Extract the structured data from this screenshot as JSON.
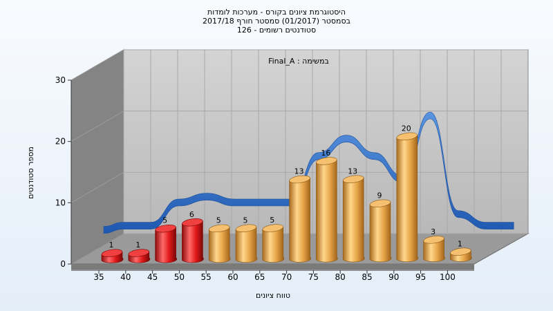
{
  "title": {
    "line1": "היסטוגרמת ציונים בקורס - מערכות לומדות",
    "line2": "בסמסטר  (01/2017)  סמסטר חורף 2017/18",
    "line3": "סטודנטים רשומים - 126"
  },
  "annotation": "Final_A : במשימה",
  "chart_data": {
    "type": "bar",
    "title": "היסטוגרמת ציונים בקורס - מערכות לומדות",
    "xlabel": "טווח ציונים",
    "ylabel": "מספר סטודנטים",
    "ylim": [
      0,
      30
    ],
    "yticks": [
      "0",
      "10",
      "20",
      "30"
    ],
    "categories": [
      "35",
      "40",
      "45",
      "50",
      "55",
      "60",
      "65",
      "70",
      "75",
      "80",
      "85",
      "90",
      "95",
      "100"
    ],
    "series": [
      {
        "values": [
          1,
          1,
          5,
          6,
          5,
          5,
          5,
          13,
          16,
          13,
          9,
          20,
          3,
          1
        ]
      }
    ],
    "bar_colors": [
      "#e21b1b",
      "#e21b1b",
      "#e21b1b",
      "#e21b1b",
      "#e0a040",
      "#e0a040",
      "#e0a040",
      "#e0a040",
      "#e0a040",
      "#e0a040",
      "#e0a040",
      "#e0a040",
      "#e0a040",
      "#e0a040"
    ],
    "ribbon_color": "#2f6fc7",
    "grid": true,
    "style": "3d"
  }
}
